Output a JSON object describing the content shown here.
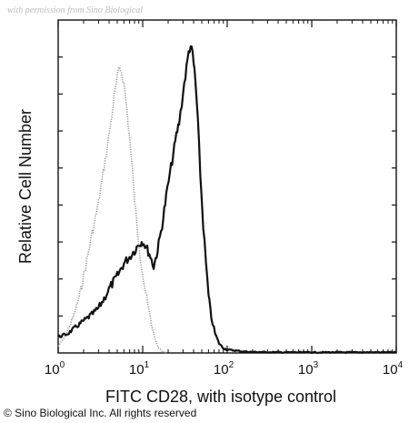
{
  "watermark": "with permission from Sino Biological",
  "copyright": "© Sino Biological Inc. All rights reserved",
  "chart_data": {
    "type": "line",
    "title": "",
    "xlabel": "FITC CD28, with isotype control",
    "ylabel": "Relative Cell Number",
    "xscale": "log",
    "xlim": [
      1,
      10000
    ],
    "ylim": [
      0,
      100
    ],
    "grid": false,
    "legend": "none",
    "x_ticks": [
      {
        "base": "10",
        "exp": "0"
      },
      {
        "base": "10",
        "exp": "1"
      },
      {
        "base": "10",
        "exp": "2"
      },
      {
        "base": "10",
        "exp": "3"
      },
      {
        "base": "10",
        "exp": "4"
      }
    ],
    "series": [
      {
        "style": "dotted-gray",
        "color": "#9a9a9a",
        "x": [
          1.0,
          1.2,
          1.5,
          1.8,
          2.0,
          2.3,
          2.6,
          3.0,
          3.4,
          3.8,
          4.2,
          4.6,
          5.0,
          5.3,
          5.6,
          6.0,
          6.5,
          7.0,
          7.5,
          8.0,
          8.7,
          9.5,
          10.5,
          11.5,
          12.5,
          13.5,
          14.5,
          15.5,
          17.0,
          19.0
        ],
        "y": [
          2,
          5,
          11,
          18,
          24,
          32,
          39,
          47,
          56,
          64,
          72,
          80,
          86,
          89,
          88,
          84,
          76,
          67,
          58,
          48,
          38,
          29,
          21,
          15,
          10,
          6,
          3,
          1.5,
          0.5,
          0
        ]
      },
      {
        "style": "solid-black",
        "color": "#111111",
        "x": [
          1.0,
          1.3,
          1.6,
          2.0,
          2.5,
          3.0,
          3.5,
          4.0,
          5.0,
          6.0,
          7.0,
          8.0,
          9.0,
          10.0,
          11.0,
          12.0,
          13.5,
          15.0,
          17.0,
          19.0,
          21.0,
          23.0,
          25.0,
          27.0,
          29.0,
          31.0,
          33.0,
          35.0,
          37.0,
          39.0,
          41.0,
          43.0,
          45.0,
          48.0,
          52.0,
          56.0,
          60.0,
          65.0,
          72.0,
          80.0,
          90.0,
          100.0,
          120.0,
          150.0,
          200.0,
          500.0,
          1000.0,
          5000.0,
          10000.0
        ],
        "y": [
          5,
          6,
          8,
          10,
          12,
          14,
          17,
          20,
          24,
          28,
          30,
          32,
          34,
          35,
          33,
          31,
          27,
          32,
          40,
          49,
          56,
          62,
          68,
          72,
          78,
          84,
          89,
          94,
          96,
          93,
          88,
          81,
          72,
          56,
          40,
          28,
          18,
          11,
          6,
          3,
          1.5,
          1,
          0.8,
          0.5,
          0.3,
          0.2,
          0.2,
          0.2,
          0.2
        ]
      }
    ]
  }
}
